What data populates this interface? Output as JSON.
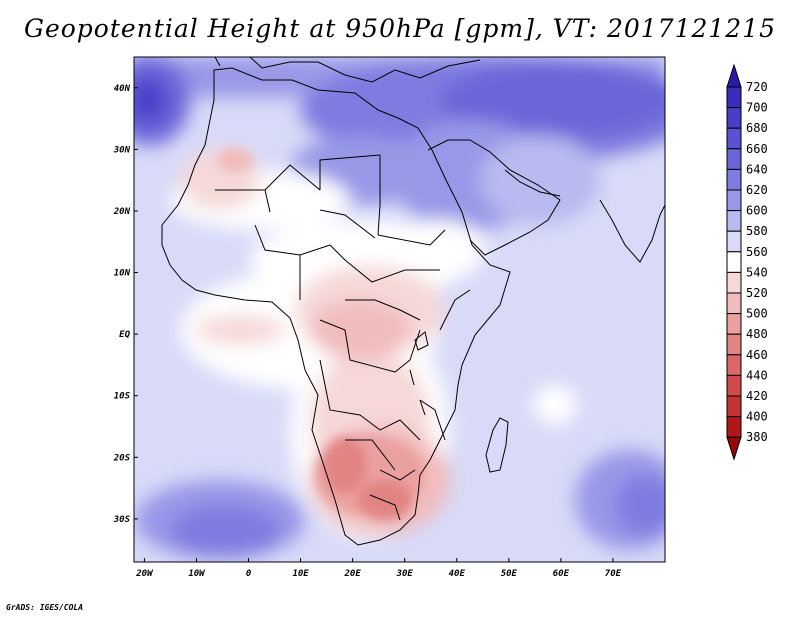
{
  "title": "Geopotential Height at 950hPa [gpm], VT: 2017121215",
  "credit": "GrADS: IGES/COLA",
  "lat_labels": [
    "40N",
    "30N",
    "20N",
    "10N",
    "EQ",
    "10S",
    "20S",
    "30S"
  ],
  "lon_labels": [
    "20W",
    "10W",
    "0",
    "10E",
    "20E",
    "30E",
    "40E",
    "50E",
    "60E",
    "70E"
  ],
  "colorbar_levels": [
    "720",
    "700",
    "680",
    "660",
    "640",
    "620",
    "600",
    "580",
    "560",
    "540",
    "520",
    "500",
    "480",
    "460",
    "440",
    "420",
    "400",
    "380"
  ],
  "colorbar_colors": [
    "#2a1aa8",
    "#3a2dbd",
    "#4a3ec9",
    "#5a52d2",
    "#6a66d9",
    "#7e7ce0",
    "#9898e8",
    "#b8baf0",
    "#d8daf8",
    "#ffffff",
    "#f6d8d8",
    "#f1bcbc",
    "#eba0a0",
    "#e28484",
    "#da6868",
    "#d04c4c",
    "#c43232",
    "#b01818",
    "#980808"
  ],
  "map_extent": {
    "lon_min": -22,
    "lon_max": 80,
    "lat_min": -37,
    "lat_max": 45
  }
}
